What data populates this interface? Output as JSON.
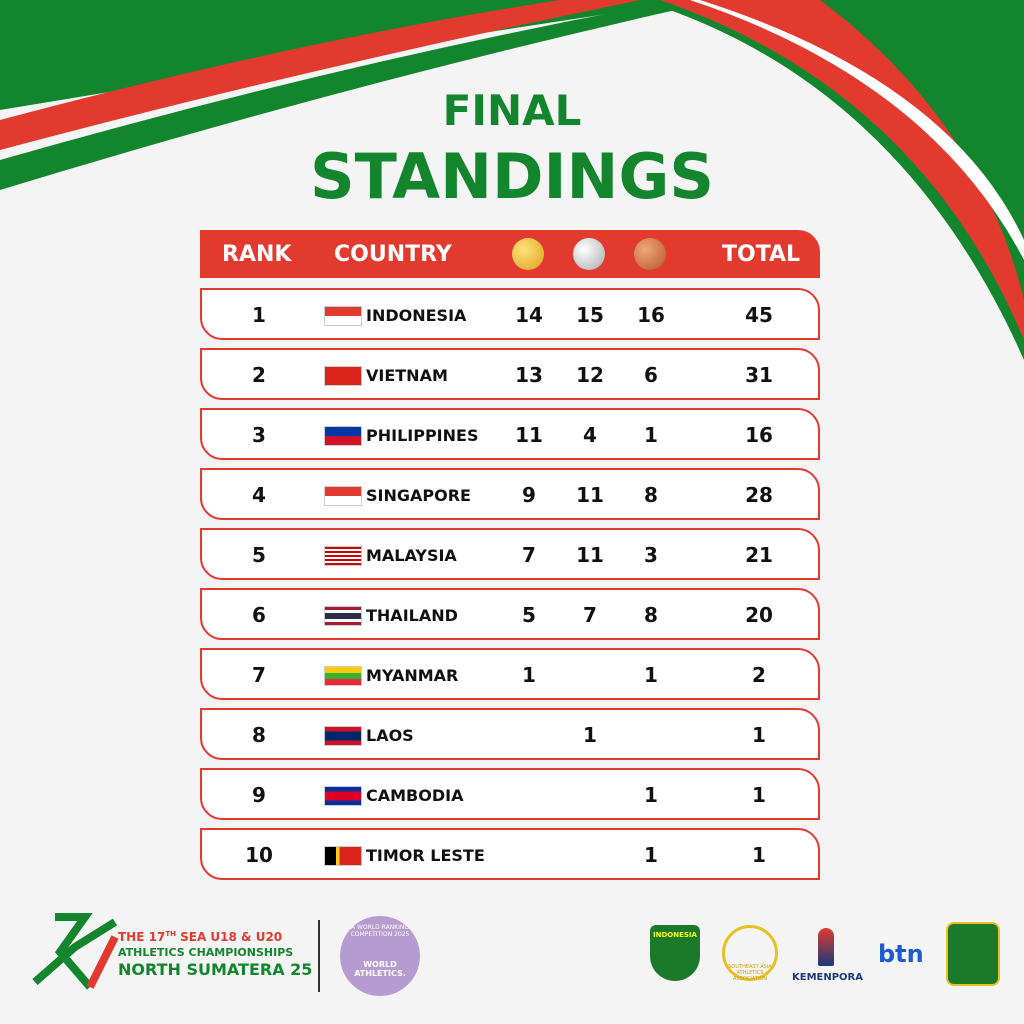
{
  "title": {
    "line1": "FINAL",
    "line2": "STANDINGS"
  },
  "table": {
    "header": {
      "rank": "RANK",
      "country": "COUNTRY",
      "total": "TOTAL"
    },
    "rows": [
      {
        "rank": 1,
        "country": "INDONESIA",
        "gold": 14,
        "silver": 15,
        "bronze": 16,
        "total": 45
      },
      {
        "rank": 2,
        "country": "VIETNAM",
        "gold": 13,
        "silver": 12,
        "bronze": 6,
        "total": 31
      },
      {
        "rank": 3,
        "country": "PHILIPPINES",
        "gold": 11,
        "silver": 4,
        "bronze": 1,
        "total": 16
      },
      {
        "rank": 4,
        "country": "SINGAPORE",
        "gold": 9,
        "silver": 11,
        "bronze": 8,
        "total": 28
      },
      {
        "rank": 5,
        "country": "MALAYSIA",
        "gold": 7,
        "silver": 11,
        "bronze": 3,
        "total": 21
      },
      {
        "rank": 6,
        "country": "THAILAND",
        "gold": 5,
        "silver": 7,
        "bronze": 8,
        "total": 20
      },
      {
        "rank": 7,
        "country": "MYANMAR",
        "gold": 1,
        "silver": null,
        "bronze": 1,
        "total": 2
      },
      {
        "rank": 8,
        "country": "LAOS",
        "gold": null,
        "silver": 1,
        "bronze": null,
        "total": 1
      },
      {
        "rank": 9,
        "country": "CAMBODIA",
        "gold": null,
        "silver": null,
        "bronze": 1,
        "total": 1
      },
      {
        "rank": 10,
        "country": "TIMOR LESTE",
        "gold": null,
        "silver": null,
        "bronze": 1,
        "total": 1
      }
    ]
  },
  "footer": {
    "event": {
      "ordinal_pre": "THE 17",
      "ordinal_sup": "TH",
      "ordinal_post": " SEA U18 & U20",
      "line2": "ATHLETICS CHAMPIONSHIPS",
      "line3": "NORTH SUMATERA 25"
    },
    "badge": {
      "ring": "A WORLD RANKING COMPETITION 2025",
      "name": "WORLD ATHLETICS."
    },
    "sponsors": {
      "pasi": "INDONESIA",
      "aaa": "SOUTHEAST ASIA ATHLETICS ASSOCIATION",
      "kemenpora": "KEMENPORA",
      "btn": "btn"
    }
  }
}
